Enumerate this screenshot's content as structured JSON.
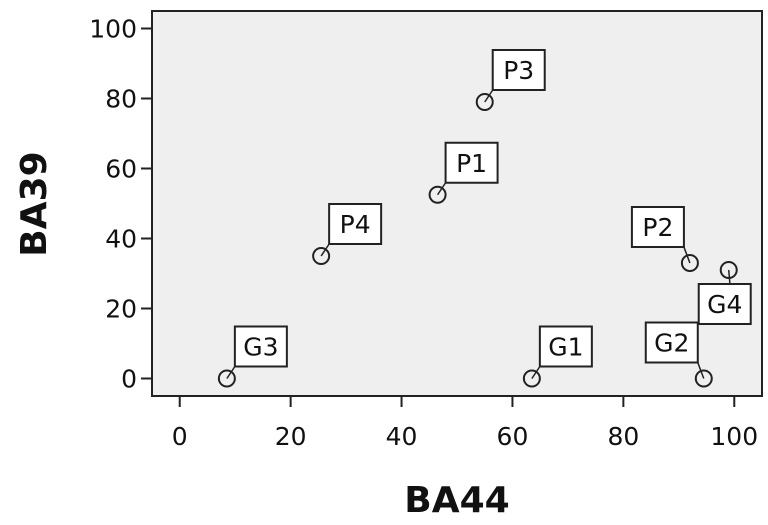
{
  "chart_data": {
    "type": "scatter",
    "xlabel": "BA44",
    "ylabel": "BA39",
    "xlim": [
      -5,
      105
    ],
    "ylim": [
      -5,
      105
    ],
    "x_ticks": [
      0,
      20,
      40,
      60,
      80,
      100
    ],
    "y_ticks": [
      0,
      20,
      40,
      60,
      80,
      100
    ],
    "grid": false,
    "background": "#efefef",
    "points": [
      {
        "label": "P3",
        "x": 55,
        "y": 79,
        "label_pos": "upper-right"
      },
      {
        "label": "P1",
        "x": 46.5,
        "y": 52.5,
        "label_pos": "upper-right"
      },
      {
        "label": "P4",
        "x": 25.5,
        "y": 35,
        "label_pos": "upper-right"
      },
      {
        "label": "P2",
        "x": 92,
        "y": 33,
        "label_pos": "upper-left"
      },
      {
        "label": "G4",
        "x": 99,
        "y": 31,
        "label_pos": "lower-right"
      },
      {
        "label": "G3",
        "x": 8.5,
        "y": 0,
        "label_pos": "upper-right"
      },
      {
        "label": "G1",
        "x": 63.5,
        "y": 0,
        "label_pos": "upper-right"
      },
      {
        "label": "G2",
        "x": 94.5,
        "y": 0,
        "label_pos": "upper-left"
      }
    ]
  }
}
